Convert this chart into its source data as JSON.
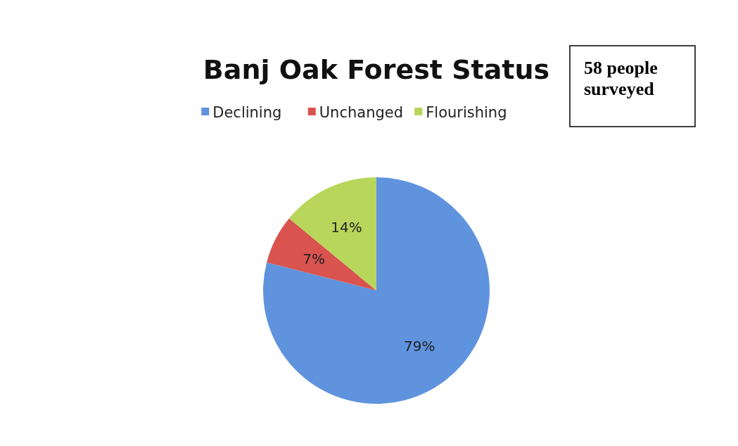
{
  "chart_data": {
    "type": "pie",
    "title": "Banj Oak Forest Status",
    "categories": [
      "Declining",
      "Unchanged",
      "Flourishing"
    ],
    "values": [
      79,
      7,
      14
    ],
    "value_labels": [
      "79%",
      "7%",
      "14%"
    ],
    "colors": [
      "#5f93de",
      "#d9534f",
      "#b8d65b"
    ],
    "legend": "top",
    "annotations": [
      "58 people surveyed"
    ]
  }
}
